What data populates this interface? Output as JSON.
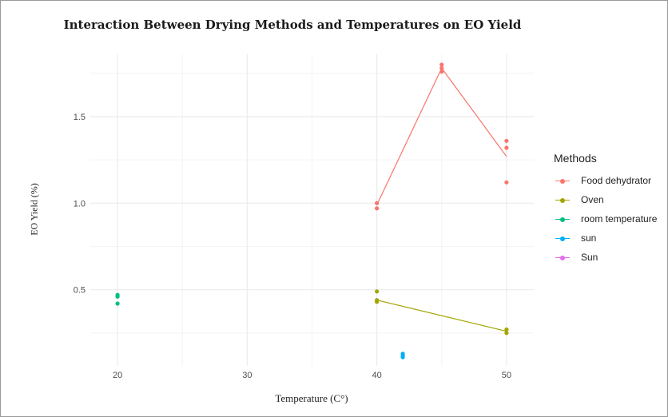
{
  "chart_data": {
    "type": "line",
    "title": "Interaction Between Drying Methods and Temperatures on EO Yield",
    "xlabel": "Temperature (C°)",
    "ylabel": "EO Yield (%)",
    "xlim": [
      17.9,
      52.1
    ],
    "ylim": [
      0.06,
      1.86
    ],
    "x_ticks": [
      20,
      30,
      40,
      50
    ],
    "y_ticks": [
      0.5,
      1.0,
      1.5
    ],
    "x_tick_labels": [
      "20",
      "30",
      "40",
      "50"
    ],
    "y_tick_labels": [
      "0.5",
      "1.0",
      "1.5"
    ],
    "grid": true,
    "legend_title": "Methods",
    "legend_position": "right",
    "series": [
      {
        "name": "Food dehydrator",
        "color": "#f8766d",
        "line": [
          [
            40,
            0.99
          ],
          [
            45,
            1.78
          ],
          [
            50,
            1.27
          ]
        ],
        "points": [
          [
            40,
            1.0
          ],
          [
            40,
            0.97
          ],
          [
            45,
            1.8
          ],
          [
            45,
            1.78
          ],
          [
            45,
            1.76
          ],
          [
            50,
            1.36
          ],
          [
            50,
            1.32
          ],
          [
            50,
            1.12
          ]
        ]
      },
      {
        "name": "Oven",
        "color": "#a3a500",
        "line": [
          [
            40,
            0.44
          ],
          [
            50,
            0.26
          ]
        ],
        "points": [
          [
            40,
            0.49
          ],
          [
            40,
            0.44
          ],
          [
            40,
            0.43
          ],
          [
            50,
            0.27
          ],
          [
            50,
            0.25
          ]
        ]
      },
      {
        "name": "room temperature",
        "color": "#00bf7d",
        "line": [],
        "points": [
          [
            20,
            0.47
          ],
          [
            20,
            0.46
          ],
          [
            20,
            0.42
          ]
        ]
      },
      {
        "name": "sun",
        "color": "#00b0f6",
        "line": [],
        "points": [
          [
            42,
            0.13
          ],
          [
            42,
            0.12
          ],
          [
            42,
            0.11
          ]
        ]
      },
      {
        "name": "Sun",
        "color": "#e76bf3",
        "line": [],
        "points": []
      }
    ]
  }
}
